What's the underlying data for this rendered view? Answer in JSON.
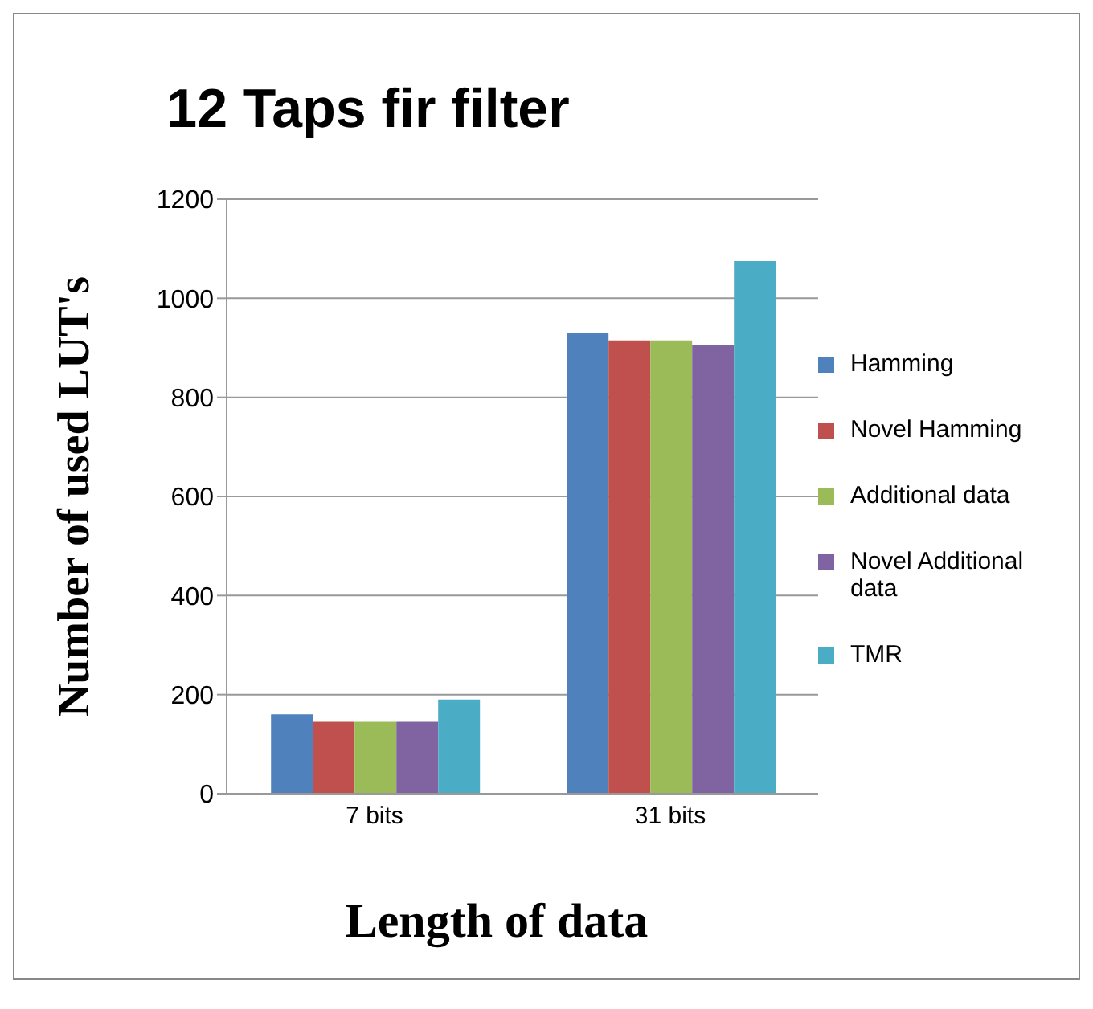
{
  "chart_data": {
    "type": "bar",
    "title": "12 Taps fir filter",
    "xlabel": "Length  of data",
    "ylabel": "Number of used LUT's",
    "categories": [
      "7 bits",
      "31 bits"
    ],
    "series": [
      {
        "name": "Hamming",
        "color": "#4f81bd",
        "values": [
          160,
          930
        ]
      },
      {
        "name": "Novel Hamming",
        "color": "#c0504d",
        "values": [
          145,
          915
        ]
      },
      {
        "name": "Additional data",
        "color": "#9bbb59",
        "values": [
          145,
          915
        ]
      },
      {
        "name": "Novel Additional data",
        "color": "#8064a2",
        "values": [
          145,
          905
        ]
      },
      {
        "name": "TMR",
        "color": "#4bacc6",
        "values": [
          190,
          1075
        ]
      }
    ],
    "ylim": [
      0,
      1200
    ],
    "yticks": [
      0,
      200,
      400,
      600,
      800,
      1000,
      1200
    ],
    "grid": "y",
    "legend": "right"
  }
}
